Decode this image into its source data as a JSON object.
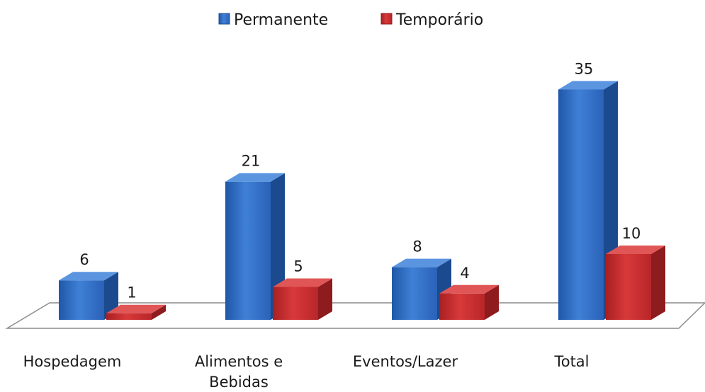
{
  "chart_data": {
    "type": "bar",
    "categories": [
      "Hospedagem",
      "Alimentos e Bebidas",
      "Eventos/Lazer",
      "Total"
    ],
    "category_lines": [
      [
        "Hospedagem"
      ],
      [
        "Alimentos e",
        "Bebidas"
      ],
      [
        "Eventos/Lazer"
      ],
      [
        "Total"
      ]
    ],
    "series": [
      {
        "name": "Permanente",
        "values": [
          6,
          21,
          8,
          35
        ],
        "color": "#2e6bc2"
      },
      {
        "name": "Temporário",
        "values": [
          1,
          5,
          4,
          10
        ],
        "color": "#c0282a"
      }
    ],
    "title": "",
    "xlabel": "",
    "ylabel": "",
    "ylim": [
      0,
      35
    ],
    "legend_position": "top",
    "grid": false,
    "style": "3d-column"
  }
}
